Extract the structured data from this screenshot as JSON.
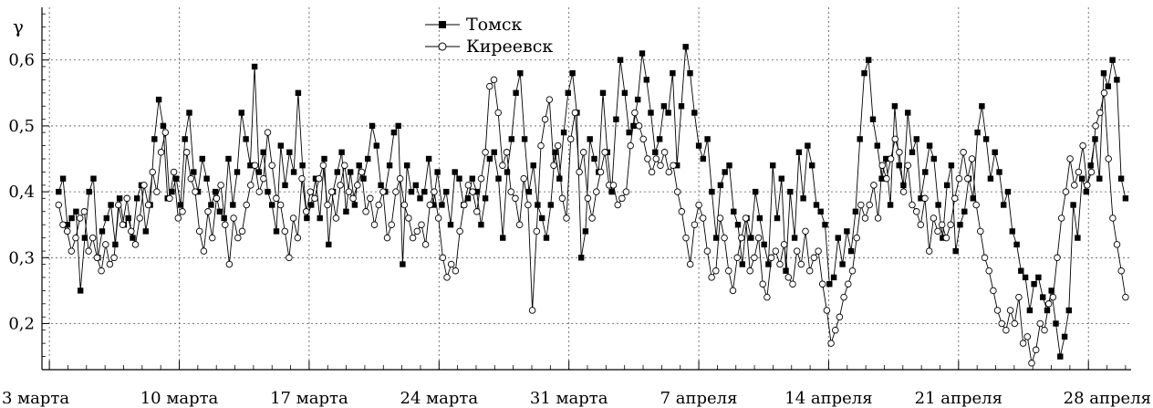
{
  "chart_data": {
    "type": "line",
    "ylabel": "γ",
    "ylim": [
      0.13,
      0.68
    ],
    "y_ticks": [
      {
        "value": 0.2,
        "label": "0,2"
      },
      {
        "value": 0.3,
        "label": "0,3"
      },
      {
        "value": 0.4,
        "label": "0,4"
      },
      {
        "value": 0.5,
        "label": "0,5"
      },
      {
        "value": 0.6,
        "label": "0,6"
      }
    ],
    "x_range_days": [
      -0.4,
      58.3
    ],
    "x_ticks": [
      {
        "day": 0,
        "label": "3 марта"
      },
      {
        "day": 7,
        "label": "10 марта"
      },
      {
        "day": 14,
        "label": "17 марта"
      },
      {
        "day": 21,
        "label": "24 марта"
      },
      {
        "day": 28,
        "label": "31 марта"
      },
      {
        "day": 35,
        "label": "7 апреля"
      },
      {
        "day": 42,
        "label": "14 апреля"
      },
      {
        "day": 49,
        "label": "21 апреля"
      },
      {
        "day": 56,
        "label": "28 апреля"
      }
    ],
    "grid": true,
    "legend_position": "top-center",
    "series": [
      {
        "name": "Томск",
        "marker": "filled-square",
        "color": "#000000",
        "values": [
          0.4,
          0.42,
          0.35,
          0.36,
          0.37,
          0.25,
          0.33,
          0.4,
          0.42,
          0.3,
          0.34,
          0.36,
          0.38,
          0.32,
          0.39,
          0.35,
          0.36,
          0.33,
          0.39,
          0.41,
          0.34,
          0.38,
          0.48,
          0.54,
          0.5,
          0.39,
          0.4,
          0.42,
          0.38,
          0.48,
          0.52,
          0.43,
          0.4,
          0.45,
          0.42,
          0.38,
          0.4,
          0.37,
          0.36,
          0.45,
          0.38,
          0.43,
          0.52,
          0.48,
          0.44,
          0.59,
          0.43,
          0.46,
          0.4,
          0.38,
          0.34,
          0.47,
          0.41,
          0.46,
          0.43,
          0.55,
          0.44,
          0.36,
          0.38,
          0.42,
          0.36,
          0.45,
          0.32,
          0.4,
          0.43,
          0.46,
          0.37,
          0.43,
          0.38,
          0.44,
          0.42,
          0.45,
          0.5,
          0.47,
          0.41,
          0.4,
          0.44,
          0.49,
          0.5,
          0.29,
          0.44,
          0.4,
          0.41,
          0.39,
          0.4,
          0.45,
          0.38,
          0.43,
          0.38,
          0.4,
          0.35,
          0.43,
          0.42,
          0.38,
          0.39,
          0.42,
          0.4,
          0.35,
          0.39,
          0.45,
          0.46,
          0.42,
          0.33,
          0.43,
          0.48,
          0.55,
          0.58,
          0.48,
          0.4,
          0.44,
          0.38,
          0.36,
          0.33,
          0.38,
          0.46,
          0.42,
          0.49,
          0.55,
          0.58,
          0.52,
          0.3,
          0.34,
          0.48,
          0.45,
          0.43,
          0.55,
          0.46,
          0.4,
          0.51,
          0.6,
          0.55,
          0.49,
          0.5,
          0.54,
          0.61,
          0.57,
          0.52,
          0.46,
          0.48,
          0.53,
          0.52,
          0.58,
          0.44,
          0.53,
          0.62,
          0.58,
          0.52,
          0.47,
          0.45,
          0.48,
          0.4,
          0.33,
          0.41,
          0.43,
          0.44,
          0.37,
          0.35,
          0.29,
          0.36,
          0.33,
          0.4,
          0.36,
          0.32,
          0.29,
          0.44,
          0.36,
          0.42,
          0.28,
          0.4,
          0.33,
          0.46,
          0.39,
          0.47,
          0.44,
          0.38,
          0.37,
          0.35,
          0.26,
          0.27,
          0.33,
          0.29,
          0.34,
          0.31,
          0.37,
          0.48,
          0.58,
          0.6,
          0.51,
          0.47,
          0.42,
          0.45,
          0.38,
          0.53,
          0.44,
          0.41,
          0.52,
          0.46,
          0.48,
          0.39,
          0.43,
          0.47,
          0.45,
          0.38,
          0.33,
          0.41,
          0.44,
          0.31,
          0.35,
          0.37,
          0.42,
          0.39,
          0.49,
          0.53,
          0.48,
          0.42,
          0.46,
          0.43,
          0.38,
          0.4,
          0.34,
          0.32,
          0.28,
          0.27,
          0.22,
          0.26,
          0.27,
          0.24,
          0.22,
          0.25,
          0.2,
          0.15,
          0.18,
          0.22,
          0.38,
          0.33,
          0.42,
          0.4,
          0.44,
          0.48,
          0.42,
          0.58,
          0.56,
          0.6,
          0.57,
          0.42,
          0.39
        ]
      },
      {
        "name": "Киреевск",
        "marker": "open-circle",
        "color": "#000000",
        "values": [
          0.38,
          0.35,
          0.34,
          0.31,
          0.33,
          0.36,
          0.37,
          0.31,
          0.33,
          0.3,
          0.28,
          0.32,
          0.29,
          0.3,
          0.38,
          0.35,
          0.39,
          0.34,
          0.32,
          0.36,
          0.41,
          0.38,
          0.43,
          0.4,
          0.46,
          0.49,
          0.39,
          0.43,
          0.36,
          0.37,
          0.46,
          0.42,
          0.4,
          0.34,
          0.31,
          0.37,
          0.33,
          0.39,
          0.41,
          0.35,
          0.29,
          0.36,
          0.33,
          0.34,
          0.38,
          0.41,
          0.44,
          0.4,
          0.42,
          0.49,
          0.44,
          0.39,
          0.38,
          0.34,
          0.3,
          0.36,
          0.33,
          0.42,
          0.37,
          0.4,
          0.39,
          0.42,
          0.44,
          0.38,
          0.4,
          0.36,
          0.41,
          0.44,
          0.4,
          0.39,
          0.41,
          0.43,
          0.37,
          0.39,
          0.35,
          0.38,
          0.4,
          0.33,
          0.35,
          0.4,
          0.42,
          0.38,
          0.36,
          0.33,
          0.34,
          0.35,
          0.32,
          0.38,
          0.4,
          0.36,
          0.3,
          0.27,
          0.29,
          0.28,
          0.34,
          0.38,
          0.41,
          0.4,
          0.37,
          0.42,
          0.46,
          0.56,
          0.57,
          0.52,
          0.44,
          0.46,
          0.4,
          0.39,
          0.35,
          0.42,
          0.38,
          0.22,
          0.34,
          0.47,
          0.51,
          0.54,
          0.44,
          0.47,
          0.39,
          0.36,
          0.48,
          0.52,
          0.43,
          0.46,
          0.39,
          0.36,
          0.4,
          0.43,
          0.46,
          0.41,
          0.41,
          0.38,
          0.39,
          0.4,
          0.47,
          0.52,
          0.5,
          0.48,
          0.45,
          0.43,
          0.45,
          0.44,
          0.46,
          0.43,
          0.44,
          0.4,
          0.37,
          0.33,
          0.29,
          0.35,
          0.38,
          0.36,
          0.31,
          0.27,
          0.28,
          0.36,
          0.33,
          0.28,
          0.25,
          0.3,
          0.33,
          0.36,
          0.28,
          0.3,
          0.33,
          0.26,
          0.24,
          0.3,
          0.31,
          0.29,
          0.32,
          0.27,
          0.26,
          0.31,
          0.29,
          0.34,
          0.28,
          0.3,
          0.31,
          0.26,
          0.22,
          0.17,
          0.19,
          0.21,
          0.24,
          0.26,
          0.28,
          0.33,
          0.38,
          0.36,
          0.38,
          0.41,
          0.36,
          0.44,
          0.42,
          0.45,
          0.48,
          0.46,
          0.4,
          0.44,
          0.38,
          0.37,
          0.35,
          0.39,
          0.31,
          0.36,
          0.34,
          0.35,
          0.33,
          0.35,
          0.39,
          0.42,
          0.46,
          0.42,
          0.45,
          0.38,
          0.34,
          0.3,
          0.28,
          0.25,
          0.22,
          0.2,
          0.19,
          0.22,
          0.2,
          0.24,
          0.17,
          0.18,
          0.14,
          0.16,
          0.2,
          0.19,
          0.23,
          0.24,
          0.3,
          0.36,
          0.4,
          0.45,
          0.41,
          0.43,
          0.47,
          0.41,
          0.43,
          0.5,
          0.52,
          0.55,
          0.45,
          0.36,
          0.32,
          0.28,
          0.24
        ]
      }
    ]
  }
}
